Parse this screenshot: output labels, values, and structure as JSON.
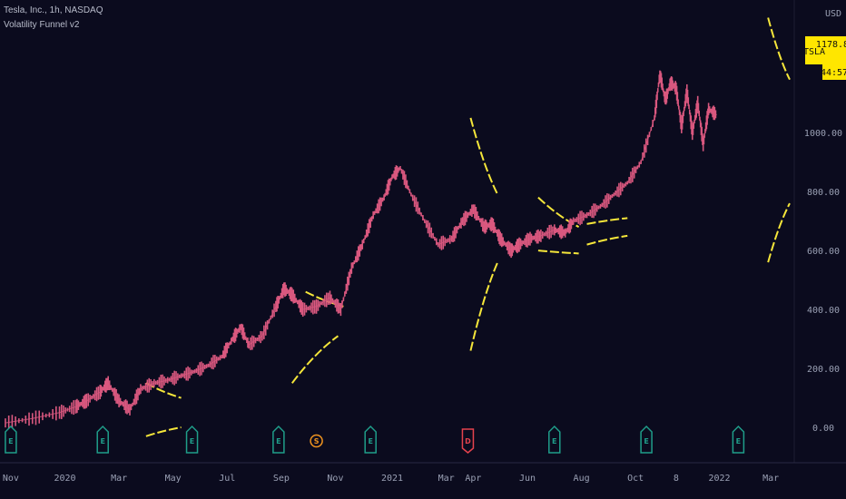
{
  "legend": {
    "symbol_line": "Tesla, Inc., 1h, NASDAQ",
    "indicator_line": "Volatility Funnel v2"
  },
  "price_axis": {
    "currency": "USD",
    "badge_symbol": "TSLA",
    "badge_price": "1178.80",
    "badge_countdown": "44:57",
    "badge_color": "#ffe600"
  },
  "colors": {
    "background": "#0b0b1e",
    "candles": "#d9587f",
    "funnel": "#f5e63a",
    "earnings": "#1f9e8a",
    "split": "#f0941f",
    "dividend": "#e5424d"
  },
  "chart_data": {
    "type": "line",
    "title": "",
    "ylabel": "",
    "ylim": [
      -120,
      1450
    ],
    "yticks": [
      "0.00",
      "200.00",
      "400.00",
      "600.00",
      "800.00",
      "1000.00"
    ],
    "ytick_values": [
      0,
      200,
      400,
      600,
      800,
      1000
    ],
    "xticks": [
      "Nov",
      "2020",
      "Mar",
      "May",
      "Jul",
      "Sep",
      "Nov",
      "2021",
      "Mar",
      "Apr",
      "Jun",
      "Aug",
      "Oct",
      "8",
      "2022",
      "Mar"
    ],
    "xtick_pos": [
      0.2,
      2.2,
      4.2,
      6.2,
      8.2,
      10.2,
      12.2,
      14.3,
      16.3,
      17.3,
      19.3,
      21.3,
      23.3,
      24.8,
      26.4,
      28.3
    ],
    "xlim": [
      -0.2,
      29
    ],
    "price_series": {
      "name": "TSLA",
      "x": [
        0,
        1,
        2,
        2.6,
        3,
        3.5,
        3.8,
        4.2,
        4.6,
        5,
        5.5,
        6,
        6.5,
        7,
        7.5,
        8,
        8.4,
        8.7,
        9,
        9.5,
        10,
        10.3,
        10.6,
        11,
        11.5,
        12,
        12.4,
        12.8,
        13.2,
        13.6,
        14,
        14.3,
        14.6,
        15,
        15.5,
        16,
        16.5,
        16.9,
        17.3,
        17.7,
        18,
        18.3,
        18.7,
        19,
        19.4,
        19.8,
        20.3,
        20.7,
        21,
        21.5,
        22,
        22.5,
        23,
        23.5,
        24,
        24.2,
        24.4,
        24.6,
        24.8,
        25,
        25.2,
        25.4,
        25.6,
        25.8,
        26,
        26.3
      ],
      "values": [
        15,
        30,
        50,
        70,
        90,
        120,
        150,
        90,
        60,
        130,
        150,
        160,
        175,
        190,
        210,
        240,
        300,
        340,
        280,
        310,
        410,
        470,
        450,
        400,
        410,
        440,
        400,
        540,
        620,
        720,
        780,
        850,
        880,
        790,
        700,
        620,
        640,
        700,
        740,
        680,
        690,
        640,
        600,
        620,
        640,
        650,
        670,
        660,
        700,
        720,
        750,
        790,
        830,
        900,
        1050,
        1200,
        1110,
        1170,
        1150,
        1020,
        1140,
        1000,
        1100,
        960,
        1080,
        1060
      ]
    },
    "funnel_series": [
      {
        "x": [
          5.2,
          6.5
        ],
        "values": [
          150,
          100
        ]
      },
      {
        "x": [
          5.2,
          6.5
        ],
        "values": [
          -30,
          0
        ]
      },
      {
        "x": [
          11.1,
          12.5
        ],
        "values": [
          460,
          410
        ]
      },
      {
        "x": [
          10.6,
          12.3
        ],
        "values": [
          150,
          310
        ]
      },
      {
        "x": [
          17.2,
          18.2
        ],
        "values": [
          1050,
          790
        ]
      },
      {
        "x": [
          17.2,
          18.2
        ],
        "values": [
          260,
          560
        ]
      },
      {
        "x": [
          19.7,
          21.2
        ],
        "values": [
          780,
          680
        ]
      },
      {
        "x": [
          19.7,
          21.2
        ],
        "values": [
          600,
          590
        ]
      },
      {
        "x": [
          21.5,
          23.0
        ],
        "values": [
          690,
          710
        ]
      },
      {
        "x": [
          21.5,
          23.0
        ],
        "values": [
          620,
          650
        ]
      },
      {
        "x": [
          28.2,
          29.0
        ],
        "values": [
          1390,
          1180
        ]
      },
      {
        "x": [
          28.2,
          29.0
        ],
        "values": [
          560,
          760
        ]
      }
    ],
    "events": [
      {
        "label": "E",
        "kind": "earnings",
        "x": 0.2
      },
      {
        "label": "E",
        "kind": "earnings",
        "x": 3.6
      },
      {
        "label": "E",
        "kind": "earnings",
        "x": 6.9
      },
      {
        "label": "E",
        "kind": "earnings",
        "x": 10.1
      },
      {
        "label": "S",
        "kind": "split",
        "x": 11.5
      },
      {
        "label": "E",
        "kind": "earnings",
        "x": 13.5
      },
      {
        "label": "D",
        "kind": "dividend",
        "x": 17.1
      },
      {
        "label": "E",
        "kind": "earnings",
        "x": 20.3
      },
      {
        "label": "E",
        "kind": "earnings",
        "x": 23.7
      },
      {
        "label": "E",
        "kind": "earnings",
        "x": 27.1
      }
    ]
  }
}
